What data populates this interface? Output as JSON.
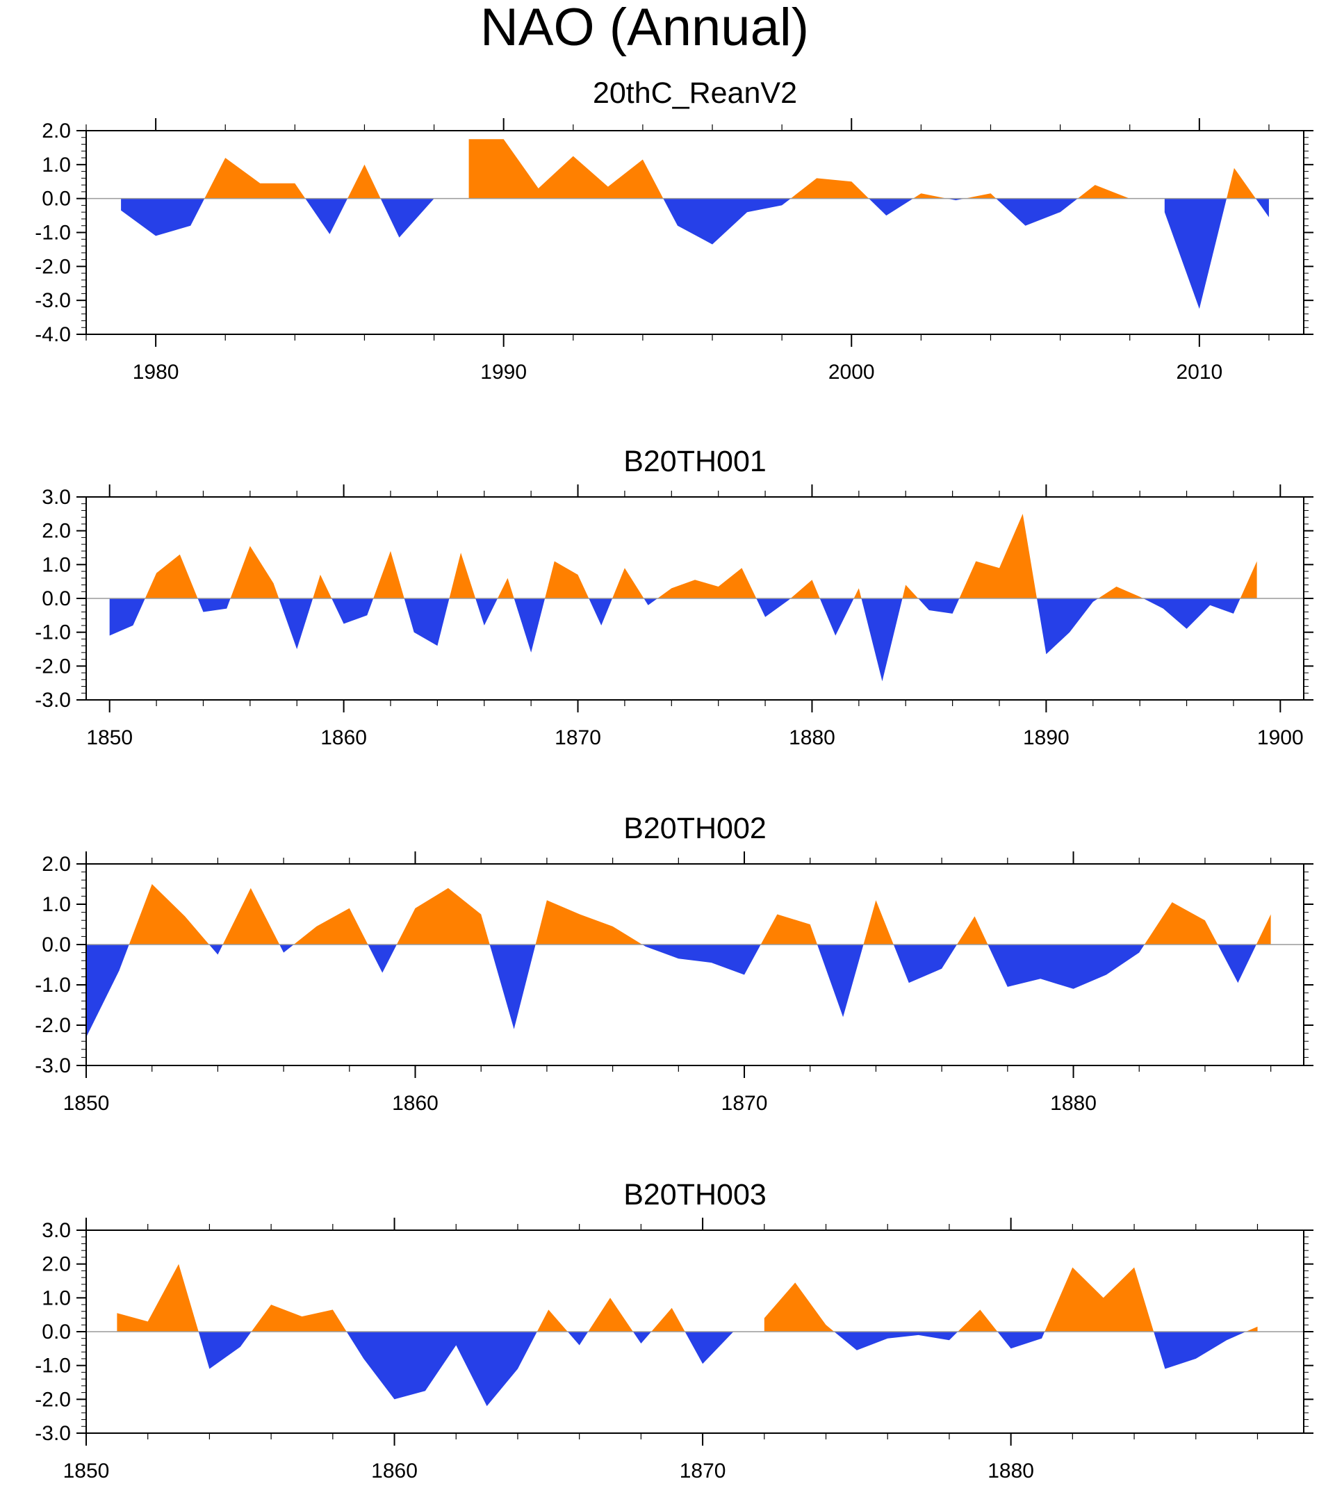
{
  "title": "NAO (Annual)",
  "colors": {
    "positive": "#ff8000",
    "negative": "#2640e8",
    "axis": "#000000",
    "zero_line": "#9a9a9a"
  },
  "chart_data": [
    {
      "type": "area",
      "title": "20thC_ReanV2",
      "xlim": [
        1978,
        2013
      ],
      "ylim": [
        -4,
        2
      ],
      "x_ticks": [
        1980,
        1990,
        2000,
        2010
      ],
      "x_ticklabels": [
        "1980",
        "1990",
        "2000",
        "2010"
      ],
      "y_ticks": [
        2,
        1,
        0,
        -1,
        -2,
        -3,
        -4
      ],
      "y_ticklabels": [
        "2.0",
        "1.0",
        "0.0",
        "-1.0",
        "-2.0",
        "-3.0",
        "-4.0"
      ],
      "x_start": 1979,
      "values": [
        -0.35,
        -1.1,
        -0.8,
        1.2,
        0.45,
        0.45,
        -1.05,
        1.0,
        -1.15,
        0.0,
        1.75,
        1.75,
        0.3,
        1.25,
        0.35,
        1.15,
        -0.8,
        -1.35,
        -0.4,
        -0.2,
        0.6,
        0.5,
        -0.5,
        0.15,
        -0.05,
        0.15,
        -0.8,
        -0.4,
        0.4,
        0.0,
        -0.4,
        -3.25,
        0.9,
        -0.55
      ]
    },
    {
      "type": "area",
      "title": "B20TH001",
      "xlim": [
        1849,
        1901
      ],
      "ylim": [
        -3,
        3
      ],
      "x_ticks": [
        1850,
        1860,
        1870,
        1880,
        1890,
        1900
      ],
      "x_ticklabels": [
        "1850",
        "1860",
        "1870",
        "1880",
        "1890",
        "1900"
      ],
      "y_ticks": [
        3,
        2,
        1,
        0,
        -1,
        -2,
        -3
      ],
      "y_ticklabels": [
        "3.0",
        "2.0",
        "1.0",
        "0.0",
        "-1.0",
        "-2.0",
        "-3.0"
      ],
      "x_start": 1850,
      "values": [
        -1.1,
        -0.8,
        0.75,
        1.3,
        -0.4,
        -0.3,
        1.55,
        0.45,
        -1.5,
        0.7,
        -0.75,
        -0.5,
        1.4,
        -1.0,
        -1.4,
        1.35,
        -0.8,
        0.6,
        -1.6,
        1.1,
        0.7,
        -0.8,
        0.9,
        -0.2,
        0.3,
        0.55,
        0.35,
        0.9,
        -0.55,
        -0.05,
        0.55,
        -1.1,
        0.3,
        -2.45,
        0.4,
        -0.35,
        -0.45,
        1.1,
        0.9,
        2.5,
        -1.65,
        -1.0,
        -0.1,
        0.35,
        0.05,
        -0.3,
        -0.9,
        -0.2,
        -0.45,
        1.1
      ]
    },
    {
      "type": "area",
      "title": "B20TH002",
      "xlim": [
        1850,
        1887
      ],
      "ylim": [
        -3,
        2
      ],
      "x_ticks": [
        1850,
        1860,
        1870,
        1880
      ],
      "x_ticklabels": [
        "1850",
        "1860",
        "1870",
        "1880"
      ],
      "y_ticks": [
        2,
        1,
        0,
        -1,
        -2,
        -3
      ],
      "y_ticklabels": [
        "2.0",
        "1.0",
        "0.0",
        "-1.0",
        "-2.0",
        "-3.0"
      ],
      "x_start": 1850,
      "values": [
        -2.3,
        -0.65,
        1.5,
        0.7,
        -0.25,
        1.4,
        -0.2,
        0.45,
        0.9,
        -0.7,
        0.9,
        1.4,
        0.75,
        -2.1,
        1.1,
        0.75,
        0.45,
        -0.05,
        -0.35,
        -0.45,
        -0.75,
        0.75,
        0.5,
        -1.8,
        1.1,
        -0.95,
        -0.6,
        0.7,
        -1.05,
        -0.85,
        -1.1,
        -0.75,
        -0.2,
        1.05,
        0.6,
        -0.95,
        0.75
      ]
    },
    {
      "type": "area",
      "title": "B20TH003",
      "xlim": [
        1850,
        1889.5
      ],
      "ylim": [
        -3,
        3
      ],
      "x_ticks": [
        1850,
        1860,
        1870,
        1880
      ],
      "x_ticklabels": [
        "1850",
        "1860",
        "1870",
        "1880"
      ],
      "y_ticks": [
        3,
        2,
        1,
        0,
        -1,
        -2,
        -3
      ],
      "y_ticklabels": [
        "3.0",
        "2.0",
        "1.0",
        "0.0",
        "-1.0",
        "-2.0",
        "-3.0"
      ],
      "x_start": 1850,
      "values": [
        0.0,
        0.55,
        0.3,
        2.0,
        -1.1,
        -0.45,
        0.8,
        0.45,
        0.65,
        -0.8,
        -2.0,
        -1.75,
        -0.4,
        -2.2,
        -1.1,
        0.65,
        -0.4,
        1.0,
        -0.35,
        0.7,
        -0.95,
        0.0,
        0.4,
        1.45,
        0.2,
        -0.55,
        -0.2,
        -0.1,
        -0.25,
        0.65,
        -0.5,
        -0.2,
        1.9,
        1.0,
        1.9,
        -1.1,
        -0.8,
        -0.25,
        0.15
      ]
    }
  ]
}
